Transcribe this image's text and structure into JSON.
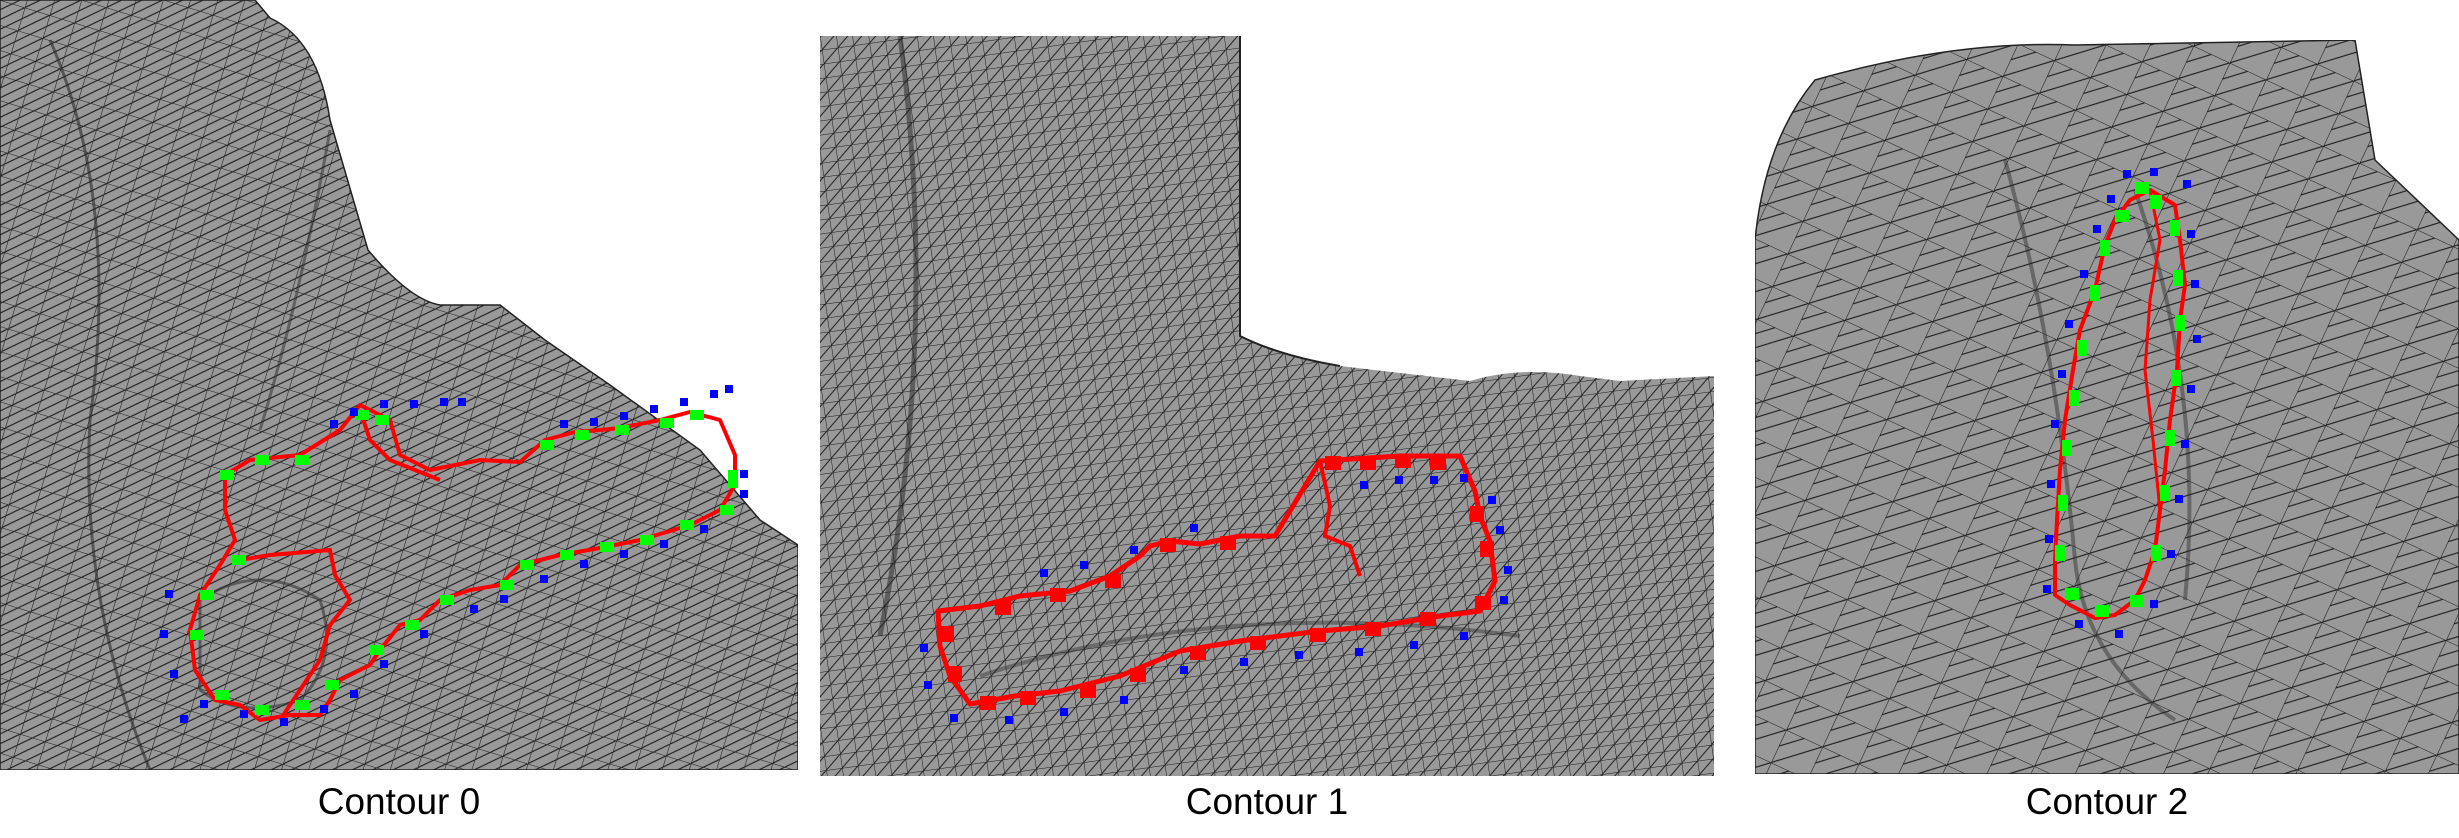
{
  "figure": {
    "colors": {
      "surface": "#999999",
      "mesh_edge": "#111111",
      "contour": "#ff0000",
      "marker_green": "#00ff00",
      "marker_blue": "#0000ff",
      "background": "#ffffff"
    },
    "panels": [
      {
        "caption": "Contour 0",
        "mesh_density": "medium",
        "markers": [
          "green",
          "blue"
        ]
      },
      {
        "caption": "Contour 1",
        "mesh_density": "fine",
        "markers": [
          "red",
          "blue"
        ]
      },
      {
        "caption": "Contour 2",
        "mesh_density": "coarse",
        "markers": [
          "green",
          "blue"
        ]
      }
    ]
  }
}
